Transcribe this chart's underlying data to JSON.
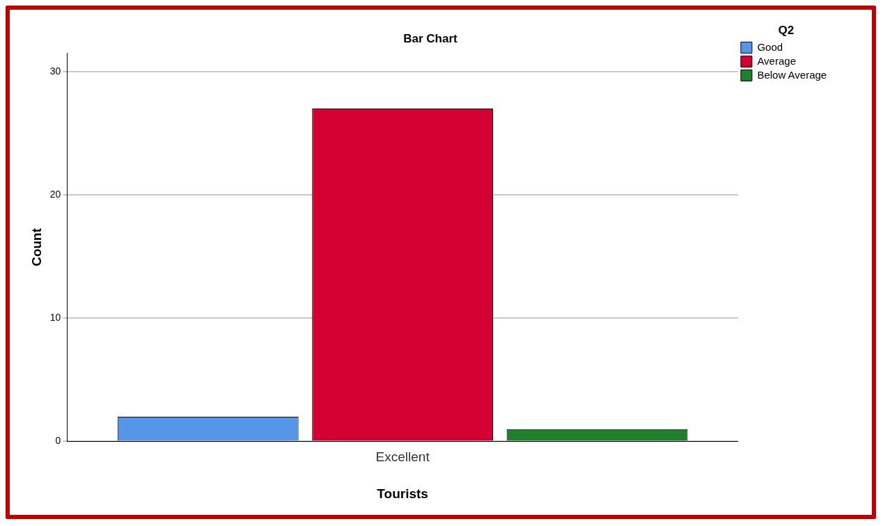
{
  "chart_data": {
    "type": "bar",
    "title": "Bar Chart",
    "xlabel": "Tourists",
    "ylabel": "Count",
    "legend_title": "Q2",
    "categories": [
      "Excellent"
    ],
    "series": [
      {
        "name": "Good",
        "color": "#5596e6",
        "values": [
          2
        ]
      },
      {
        "name": "Average",
        "color": "#d50032",
        "values": [
          27
        ]
      },
      {
        "name": "Below Average",
        "color": "#1f7f2a",
        "values": [
          1
        ]
      }
    ],
    "ylim": [
      0,
      31.5
    ],
    "yticks": [
      0,
      10,
      20,
      30
    ],
    "grid": "y",
    "legend": "top right"
  }
}
